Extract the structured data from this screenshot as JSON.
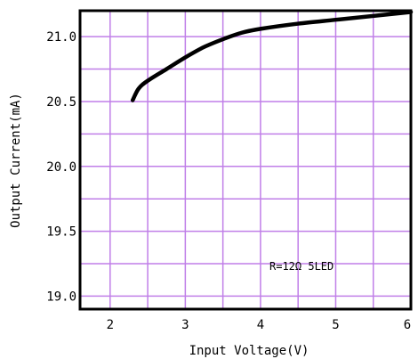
{
  "chart_data": {
    "type": "line",
    "xlabel": "Input Voltage(V)",
    "ylabel": "Output Current(mA)",
    "xlim": [
      1.6,
      6.0
    ],
    "ylim": [
      18.9,
      21.2
    ],
    "x_ticks": [
      2,
      3,
      4,
      5,
      6
    ],
    "y_ticks": [
      19.0,
      19.5,
      20.0,
      20.5,
      21.0
    ],
    "x_tick_labels": [
      "2",
      "3",
      "4",
      "5",
      "6"
    ],
    "y_tick_labels": [
      "19.0",
      "19.5",
      "20.0",
      "20.5",
      "21.0"
    ],
    "grid": true,
    "grid_x_step": 0.5,
    "grid_y_step": 0.25,
    "grid_color": "#c07fe8",
    "line_color": "#000000",
    "annotation": "R=12Ω  5LED",
    "series": [
      {
        "x": [
          2.3,
          2.38,
          2.5,
          2.75,
          3.0,
          3.25,
          3.5,
          3.75,
          4.0,
          4.5,
          5.0,
          5.5,
          6.0
        ],
        "y": [
          20.51,
          20.6,
          20.66,
          20.75,
          20.84,
          20.92,
          20.98,
          21.03,
          21.06,
          21.1,
          21.13,
          21.16,
          21.19
        ]
      }
    ]
  }
}
